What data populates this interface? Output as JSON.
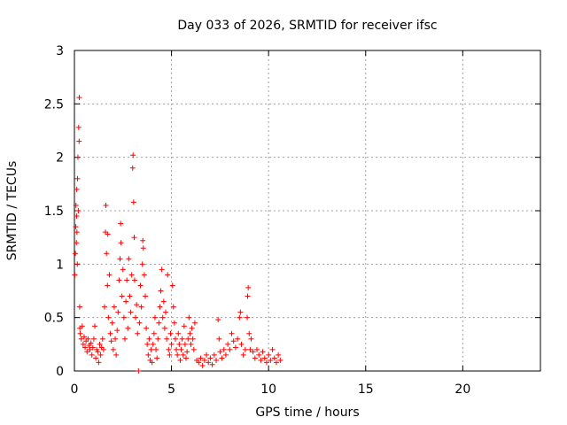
{
  "chart_data": {
    "type": "scatter",
    "title": "Day 033 of 2026, SRMTID for receiver ifsc",
    "xlabel": "GPS time / hours",
    "ylabel": "SRMTID / TECUs",
    "xlim": [
      0,
      24
    ],
    "ylim": [
      0,
      3
    ],
    "xticks": [
      0,
      5,
      10,
      15,
      20
    ],
    "xtick_labels": [
      "0",
      "5",
      "10",
      "15",
      "20"
    ],
    "yticks": [
      0,
      0.5,
      1,
      1.5,
      2,
      2.5,
      3
    ],
    "ytick_labels": [
      "0",
      "0.5",
      "1",
      "1.5",
      "2",
      "2.5",
      "3"
    ],
    "grid": true,
    "marker": "+",
    "color": "#ff0000",
    "series": [
      {
        "name": "SRMTID",
        "points": [
          [
            0.02,
            0.9
          ],
          [
            0.05,
            1.1
          ],
          [
            0.07,
            1.35
          ],
          [
            0.08,
            1.55
          ],
          [
            0.1,
            1.2
          ],
          [
            0.11,
            1.45
          ],
          [
            0.12,
            1.7
          ],
          [
            0.13,
            1.3
          ],
          [
            0.15,
            1.0
          ],
          [
            0.16,
            1.8
          ],
          [
            0.18,
            2.0
          ],
          [
            0.2,
            1.5
          ],
          [
            0.22,
            2.28
          ],
          [
            0.24,
            2.15
          ],
          [
            0.25,
            2.56
          ],
          [
            0.27,
            0.6
          ],
          [
            0.28,
            0.4
          ],
          [
            0.3,
            0.35
          ],
          [
            0.35,
            0.3
          ],
          [
            0.4,
            0.42
          ],
          [
            0.45,
            0.25
          ],
          [
            0.5,
            0.32
          ],
          [
            0.55,
            0.22
          ],
          [
            0.6,
            0.28
          ],
          [
            0.65,
            0.18
          ],
          [
            0.7,
            0.3
          ],
          [
            0.75,
            0.24
          ],
          [
            0.8,
            0.2
          ],
          [
            0.85,
            0.26
          ],
          [
            0.9,
            0.15
          ],
          [
            0.95,
            0.22
          ],
          [
            1.0,
            0.3
          ],
          [
            1.05,
            0.42
          ],
          [
            1.1,
            0.12
          ],
          [
            1.15,
            0.2
          ],
          [
            1.2,
            0.18
          ],
          [
            1.25,
            0.08
          ],
          [
            1.3,
            0.25
          ],
          [
            1.35,
            0.15
          ],
          [
            1.4,
            0.22
          ],
          [
            1.45,
            0.3
          ],
          [
            1.5,
            0.2
          ],
          [
            1.55,
            0.6
          ],
          [
            1.6,
            1.3
          ],
          [
            1.62,
            1.55
          ],
          [
            1.65,
            1.1
          ],
          [
            1.7,
            0.8
          ],
          [
            1.72,
            1.28
          ],
          [
            1.75,
            0.5
          ],
          [
            1.8,
            0.9
          ],
          [
            1.85,
            0.35
          ],
          [
            1.9,
            0.28
          ],
          [
            1.95,
            0.45
          ],
          [
            2.0,
            0.2
          ],
          [
            2.05,
            0.6
          ],
          [
            2.1,
            0.3
          ],
          [
            2.15,
            0.15
          ],
          [
            2.2,
            0.38
          ],
          [
            2.25,
            0.55
          ],
          [
            2.3,
            0.85
          ],
          [
            2.35,
            1.05
          ],
          [
            2.38,
            1.38
          ],
          [
            2.4,
            1.2
          ],
          [
            2.45,
            0.7
          ],
          [
            2.5,
            0.95
          ],
          [
            2.55,
            0.5
          ],
          [
            2.6,
            0.3
          ],
          [
            2.65,
            0.65
          ],
          [
            2.7,
            0.85
          ],
          [
            2.75,
            0.4
          ],
          [
            2.8,
            1.05
          ],
          [
            2.85,
            0.7
          ],
          [
            2.9,
            0.55
          ],
          [
            2.95,
            0.9
          ],
          [
            3.0,
            1.9
          ],
          [
            3.02,
            2.02
          ],
          [
            3.05,
            1.58
          ],
          [
            3.08,
            1.25
          ],
          [
            3.1,
            0.85
          ],
          [
            3.15,
            0.5
          ],
          [
            3.2,
            0.62
          ],
          [
            3.25,
            0.35
          ],
          [
            3.3,
            0.0
          ],
          [
            3.35,
            0.45
          ],
          [
            3.4,
            0.8
          ],
          [
            3.45,
            0.6
          ],
          [
            3.5,
            1.0
          ],
          [
            3.52,
            1.22
          ],
          [
            3.55,
            1.15
          ],
          [
            3.6,
            0.9
          ],
          [
            3.65,
            0.7
          ],
          [
            3.7,
            0.4
          ],
          [
            3.75,
            0.25
          ],
          [
            3.8,
            0.15
          ],
          [
            3.85,
            0.3
          ],
          [
            3.9,
            0.1
          ],
          [
            3.95,
            0.2
          ],
          [
            4.0,
            0.08
          ],
          [
            4.05,
            0.25
          ],
          [
            4.1,
            0.35
          ],
          [
            4.15,
            0.5
          ],
          [
            4.2,
            0.2
          ],
          [
            4.25,
            0.12
          ],
          [
            4.3,
            0.3
          ],
          [
            4.35,
            0.45
          ],
          [
            4.4,
            0.6
          ],
          [
            4.45,
            0.75
          ],
          [
            4.5,
            0.95
          ],
          [
            4.55,
            0.5
          ],
          [
            4.6,
            0.65
          ],
          [
            4.65,
            0.4
          ],
          [
            4.7,
            0.55
          ],
          [
            4.75,
            0.3
          ],
          [
            4.8,
            0.9
          ],
          [
            4.85,
            0.2
          ],
          [
            4.9,
            0.15
          ],
          [
            4.95,
            0.35
          ],
          [
            5.0,
            0.25
          ],
          [
            5.05,
            0.8
          ],
          [
            5.1,
            0.6
          ],
          [
            5.15,
            0.45
          ],
          [
            5.2,
            0.3
          ],
          [
            5.25,
            0.2
          ],
          [
            5.3,
            0.15
          ],
          [
            5.35,
            0.35
          ],
          [
            5.4,
            0.25
          ],
          [
            5.45,
            0.1
          ],
          [
            5.5,
            0.2
          ],
          [
            5.55,
            0.3
          ],
          [
            5.6,
            0.15
          ],
          [
            5.65,
            0.42
          ],
          [
            5.7,
            0.25
          ],
          [
            5.75,
            0.12
          ],
          [
            5.8,
            0.18
          ],
          [
            5.85,
            0.3
          ],
          [
            5.9,
            0.5
          ],
          [
            5.95,
            0.35
          ],
          [
            6.0,
            0.25
          ],
          [
            6.05,
            0.4
          ],
          [
            6.1,
            0.3
          ],
          [
            6.15,
            0.2
          ],
          [
            6.2,
            0.45
          ],
          [
            6.3,
            0.1
          ],
          [
            6.4,
            0.08
          ],
          [
            6.5,
            0.12
          ],
          [
            6.6,
            0.05
          ],
          [
            6.7,
            0.1
          ],
          [
            6.8,
            0.15
          ],
          [
            6.9,
            0.08
          ],
          [
            7.0,
            0.12
          ],
          [
            7.1,
            0.06
          ],
          [
            7.2,
            0.15
          ],
          [
            7.3,
            0.1
          ],
          [
            7.4,
            0.48
          ],
          [
            7.45,
            0.3
          ],
          [
            7.5,
            0.18
          ],
          [
            7.6,
            0.12
          ],
          [
            7.7,
            0.2
          ],
          [
            7.8,
            0.15
          ],
          [
            7.9,
            0.25
          ],
          [
            8.0,
            0.2
          ],
          [
            8.1,
            0.35
          ],
          [
            8.2,
            0.28
          ],
          [
            8.3,
            0.22
          ],
          [
            8.4,
            0.3
          ],
          [
            8.5,
            0.5
          ],
          [
            8.55,
            0.55
          ],
          [
            8.6,
            0.25
          ],
          [
            8.7,
            0.15
          ],
          [
            8.8,
            0.2
          ],
          [
            8.9,
            0.5
          ],
          [
            8.92,
            0.7
          ],
          [
            8.95,
            0.78
          ],
          [
            9.0,
            0.35
          ],
          [
            9.05,
            0.2
          ],
          [
            9.1,
            0.3
          ],
          [
            9.2,
            0.18
          ],
          [
            9.3,
            0.12
          ],
          [
            9.4,
            0.2
          ],
          [
            9.5,
            0.15
          ],
          [
            9.6,
            0.1
          ],
          [
            9.7,
            0.18
          ],
          [
            9.8,
            0.12
          ],
          [
            9.9,
            0.08
          ],
          [
            10.0,
            0.15
          ],
          [
            10.1,
            0.1
          ],
          [
            10.2,
            0.2
          ],
          [
            10.3,
            0.12
          ],
          [
            10.4,
            0.08
          ],
          [
            10.5,
            0.15
          ],
          [
            10.6,
            0.1
          ]
        ]
      }
    ]
  }
}
